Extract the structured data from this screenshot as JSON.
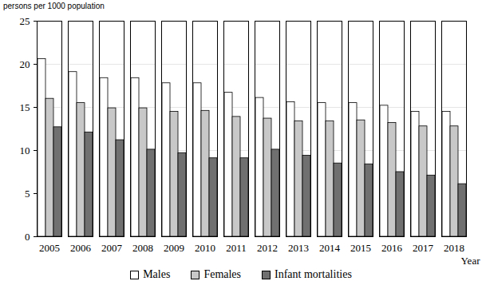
{
  "chart_data": {
    "type": "bar",
    "y_label": "persons per 1000 population",
    "x_label": "Year",
    "categories": [
      "2005",
      "2006",
      "2007",
      "2008",
      "2009",
      "2010",
      "2011",
      "2012",
      "2013",
      "2014",
      "2015",
      "2016",
      "2017",
      "2018"
    ],
    "series": [
      {
        "name": "Males",
        "color": "#ffffff",
        "values": [
          20.6,
          19.1,
          18.4,
          18.4,
          17.8,
          17.8,
          16.7,
          16.1,
          15.6,
          15.5,
          15.5,
          15.2,
          14.5,
          14.5
        ]
      },
      {
        "name": "Females",
        "color": "#c8c8c8",
        "values": [
          16.0,
          15.5,
          14.9,
          14.9,
          14.5,
          14.6,
          13.9,
          13.7,
          13.4,
          13.4,
          13.5,
          13.2,
          12.8,
          12.8
        ]
      },
      {
        "name": "Infant mortalities",
        "color": "#707070",
        "values": [
          12.7,
          12.1,
          11.2,
          10.1,
          9.7,
          9.1,
          9.1,
          10.1,
          9.4,
          8.5,
          8.4,
          7.5,
          7.1,
          6.1
        ]
      }
    ],
    "ylim": [
      0,
      25
    ],
    "yticks": [
      0,
      5,
      10,
      15,
      20,
      25
    ],
    "grid": true,
    "legend": "bottom"
  }
}
